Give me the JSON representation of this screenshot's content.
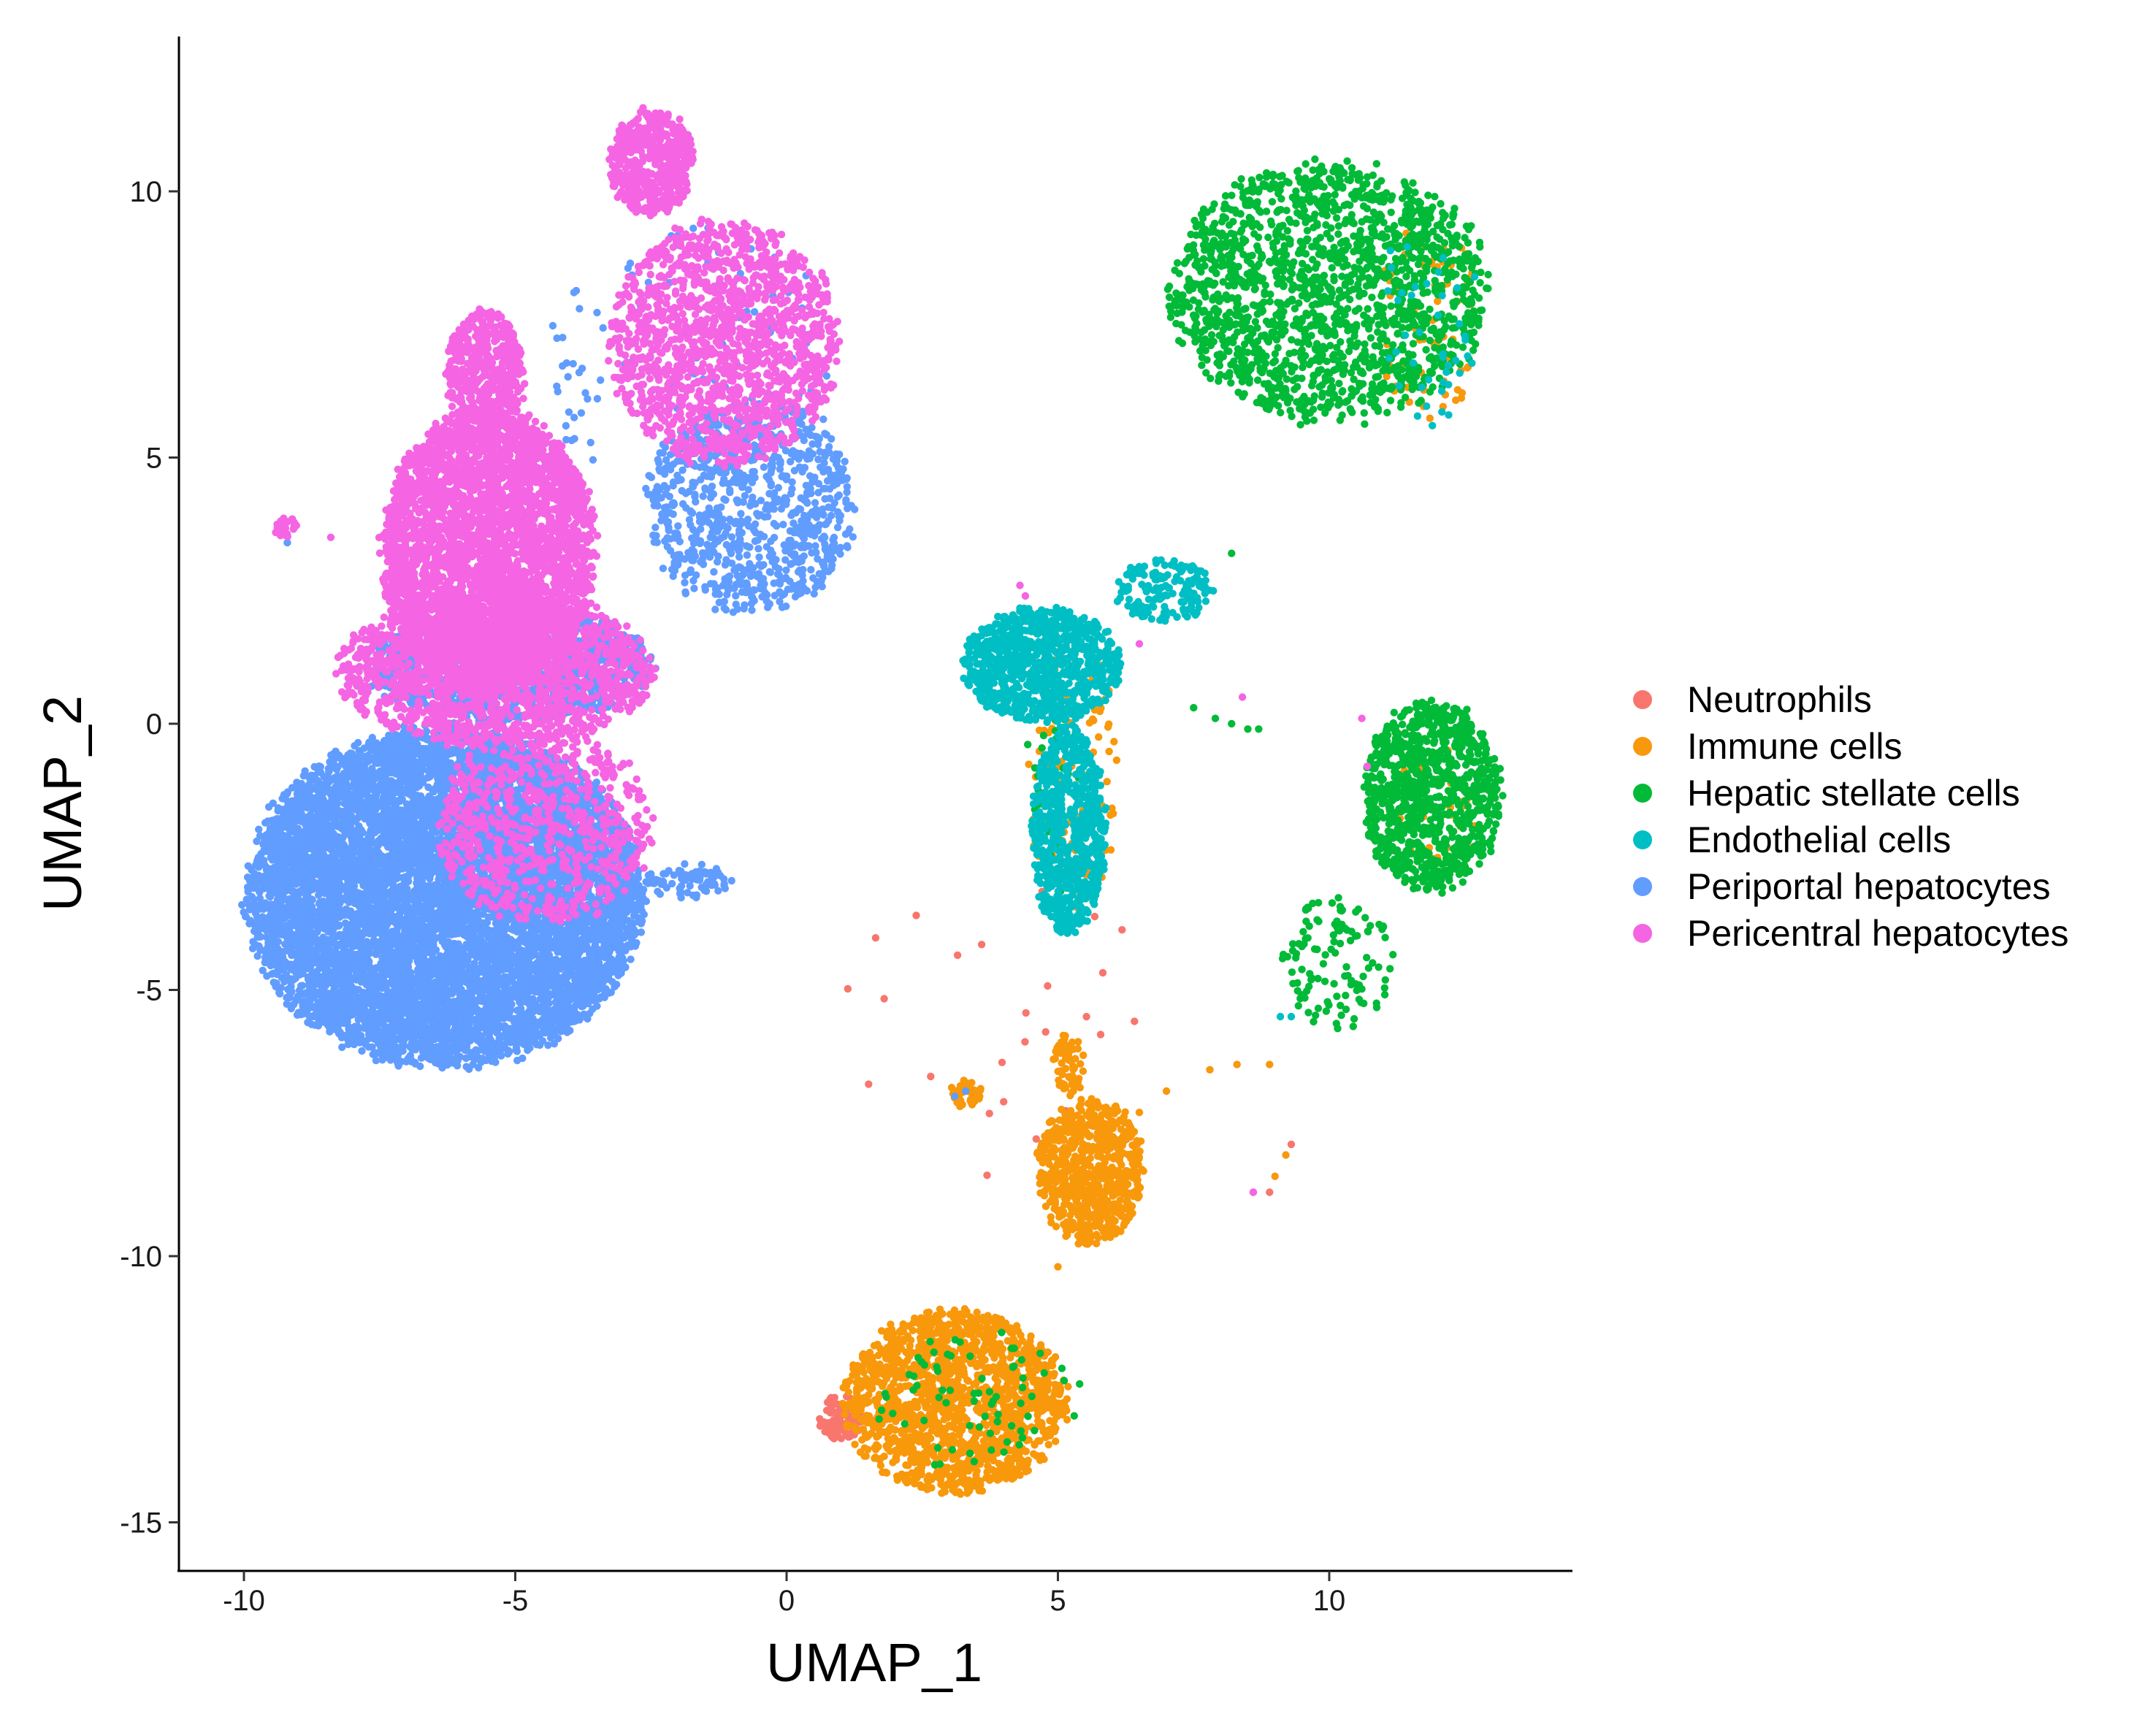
{
  "chart_data": {
    "type": "scatter",
    "title": "",
    "xlabel": "UMAP_1",
    "ylabel": "UMAP_2",
    "xlim": [
      -11.2,
      14.5
    ],
    "ylim": [
      -15.8,
      12.8
    ],
    "xticks": [
      -10,
      -5,
      0,
      5,
      10
    ],
    "yticks": [
      -15,
      -10,
      -5,
      0,
      5,
      10
    ],
    "xtick_labels": [
      "-10",
      "-5",
      "0",
      "5",
      "10"
    ],
    "ytick_labels": [
      "-15",
      "-10",
      "-5",
      "0",
      "5",
      "10"
    ],
    "grid": false,
    "legend": {
      "placement": "right"
    },
    "series": [
      {
        "name": "Neutrophils",
        "color": "#F8766D",
        "clusters": [
          {
            "x": [
              0.6,
              1.4
            ],
            "y": [
              -13.5,
              -12.6
            ],
            "n": 90
          },
          {
            "x": [
              0.6,
              7.5
            ],
            "y": [
              -9.0,
              -2.5
            ],
            "n": 25
          }
        ],
        "points": [
          [
            8.6,
            -8.8
          ],
          [
            8.9,
            -8.8
          ],
          [
            4.6,
            -7.8
          ],
          [
            9.3,
            -7.9
          ],
          [
            4.0,
            -7.1
          ]
        ]
      },
      {
        "name": "Immune cells",
        "color": "#F8980B",
        "clusters": [
          {
            "x": [
              1.0,
              5.2
            ],
            "y": [
              -14.5,
              -11.0
            ],
            "n": 1500
          },
          {
            "x": [
              4.6,
              6.6
            ],
            "y": [
              -9.8,
              -7.0
            ],
            "n": 700
          },
          {
            "x": [
              4.9,
              5.5
            ],
            "y": [
              -7.0,
              -5.8
            ],
            "n": 60
          },
          {
            "x": [
              3.0,
              3.6
            ],
            "y": [
              -7.2,
              -6.7
            ],
            "n": 40
          },
          {
            "x": [
              4.4,
              6.2
            ],
            "y": [
              1.5,
              -3.5
            ],
            "n": 120
          },
          {
            "x": [
              10.8,
              12.8
            ],
            "y": [
              9.5,
              5.6
            ],
            "n": 80
          },
          {
            "x": [
              11.2,
              12.8
            ],
            "y": [
              -0.3,
              -2.8
            ],
            "n": 30
          }
        ],
        "points": [
          [
            5.0,
            -10.2
          ],
          [
            6.5,
            -7.3
          ],
          [
            7.0,
            -6.9
          ],
          [
            7.8,
            -6.5
          ],
          [
            8.3,
            -6.4
          ],
          [
            9.0,
            -8.5
          ],
          [
            9.2,
            -8.1
          ],
          [
            8.9,
            -6.4
          ]
        ]
      },
      {
        "name": "Hepatic stellate cells",
        "color": "#00BA38",
        "clusters": [
          {
            "x": [
              7.0,
              13.0
            ],
            "y": [
              10.6,
              5.6
            ],
            "n": 1700
          },
          {
            "x": [
              10.6,
              13.2
            ],
            "y": [
              0.5,
              -3.2
            ],
            "n": 1000
          },
          {
            "x": [
              9.0,
              11.2
            ],
            "y": [
              -3.2,
              -5.8
            ],
            "n": 120
          },
          {
            "x": [
              1.6,
              5.2
            ],
            "y": [
              -14.0,
              -11.2
            ],
            "n": 70
          },
          {
            "x": [
              4.4,
              5.6
            ],
            "y": [
              1.6,
              -3.4
            ],
            "n": 50
          }
        ],
        "points": [
          [
            7.5,
            0.3
          ],
          [
            7.9,
            0.1
          ],
          [
            8.2,
            0.0
          ],
          [
            8.5,
            -0.1
          ],
          [
            8.7,
            -0.1
          ],
          [
            5.4,
            -12.4
          ],
          [
            5.3,
            -13.0
          ],
          [
            8.2,
            3.2
          ]
        ]
      },
      {
        "name": "Endothelial cells",
        "color": "#00BFC4",
        "clusters": [
          {
            "x": [
              3.2,
              6.2
            ],
            "y": [
              2.2,
              0.0
            ],
            "n": 900
          },
          {
            "x": [
              4.5,
              5.9
            ],
            "y": [
              0.0,
              -4.0
            ],
            "n": 700
          },
          {
            "x": [
              6.0,
              7.9
            ],
            "y": [
              3.1,
              1.9
            ],
            "n": 150
          },
          {
            "x": [
              10.8,
              12.8
            ],
            "y": [
              9.5,
              5.6
            ],
            "n": 40
          }
        ],
        "points": [
          [
            9.1,
            -5.5
          ],
          [
            9.3,
            -5.5
          ],
          [
            11.9,
            5.6
          ],
          [
            12.2,
            5.8
          ]
        ]
      },
      {
        "name": "Periportal hepatocytes",
        "color": "#619CFF",
        "clusters": [
          {
            "x": [
              -10.0,
              -2.6
            ],
            "y": [
              0.0,
              -6.5
            ],
            "n": 9000
          },
          {
            "x": [
              -7.8,
              -2.4
            ],
            "y": [
              2.2,
              0.0
            ],
            "n": 1200
          },
          {
            "x": [
              -2.6,
              1.3
            ],
            "y": [
              6.1,
              2.0
            ],
            "n": 900
          },
          {
            "x": [
              -2.6,
              -1.0
            ],
            "y": [
              -2.6,
              -3.3
            ],
            "n": 80
          },
          {
            "x": [
              -4.6,
              1.0
            ],
            "y": [
              9.5,
              4.0
            ],
            "n": 120
          }
        ],
        "points": [
          [
            -9.2,
            3.4
          ],
          [
            3.3,
            -6.9
          ],
          [
            3.1,
            -7.0
          ]
        ]
      },
      {
        "name": "Pericentral hepatocytes",
        "color": "#F564E3",
        "clusters": [
          {
            "x": [
              -3.3,
              -1.7
            ],
            "y": [
              11.6,
              9.5
            ],
            "n": 500
          },
          {
            "x": [
              -3.3,
              1.0
            ],
            "y": [
              9.5,
              4.8
            ],
            "n": 1500
          },
          {
            "x": [
              -6.3,
              -4.8
            ],
            "y": [
              7.8,
              5.4
            ],
            "n": 500
          },
          {
            "x": [
              -7.5,
              -3.5
            ],
            "y": [
              6.0,
              0.5
            ],
            "n": 3800
          },
          {
            "x": [
              -8.3,
              -2.4
            ],
            "y": [
              2.5,
              -0.5
            ],
            "n": 1500
          },
          {
            "x": [
              -6.5,
              -2.4
            ],
            "y": [
              0.0,
              -3.8
            ],
            "n": 700
          },
          {
            "x": [
              -9.5,
              -9.0
            ],
            "y": [
              3.9,
              3.5
            ],
            "n": 30
          }
        ],
        "points": [
          [
            -8.4,
            3.5
          ],
          [
            4.3,
            2.6
          ],
          [
            4.4,
            2.4
          ],
          [
            6.5,
            1.5
          ],
          [
            8.4,
            0.5
          ],
          [
            10.6,
            0.1
          ],
          [
            10.7,
            -0.8
          ],
          [
            8.6,
            -8.8
          ]
        ]
      }
    ]
  }
}
